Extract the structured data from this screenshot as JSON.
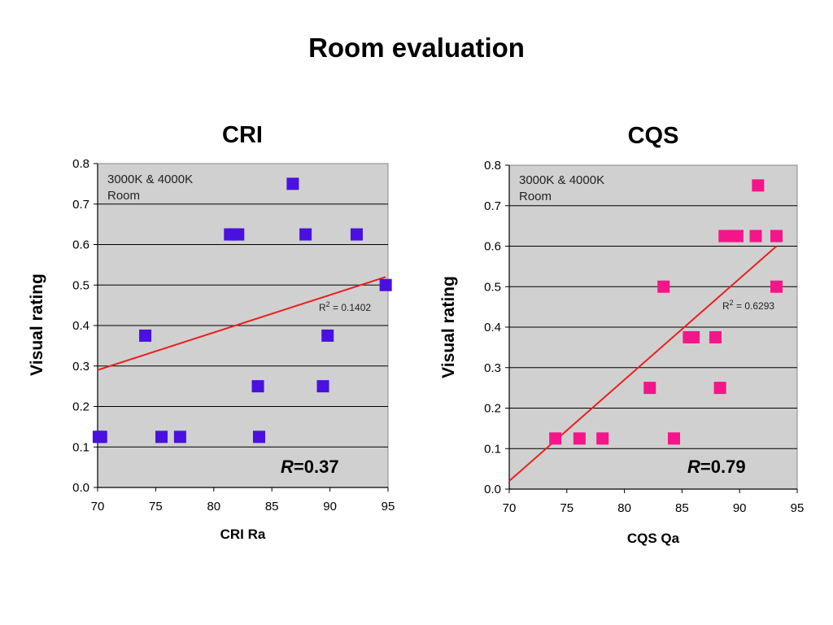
{
  "page": {
    "title": "Room evaluation"
  },
  "chart_data": [
    {
      "type": "scatter",
      "title": "CRI",
      "xlabel": "CRI Ra",
      "ylabel": "Visual rating",
      "xlim": [
        70,
        95
      ],
      "ylim": [
        0,
        0.8
      ],
      "xticks": [
        70,
        75,
        80,
        85,
        90,
        95
      ],
      "xtick_labels": [
        "70",
        "75",
        "80",
        "85",
        "90",
        "95"
      ],
      "yticks": [
        0,
        0.1,
        0.2,
        0.3,
        0.4,
        0.5,
        0.6,
        0.7,
        0.8
      ],
      "ytick_labels": [
        "0.0",
        "0.1",
        "0.2",
        "0.3",
        "0.4",
        "0.5",
        "0.6",
        "0.7",
        "0.8"
      ],
      "grid": true,
      "legend_text": [
        "3000K & 4000K",
        "Room"
      ],
      "legend_position": "top-left",
      "marker_color": "#4A10E0",
      "trendline_color": "#E8201E",
      "background_color": "#D0D0D0",
      "points": [
        {
          "x": 70.1,
          "y": 0.125
        },
        {
          "x": 70.3,
          "y": 0.125
        },
        {
          "x": 74.1,
          "y": 0.375
        },
        {
          "x": 75.5,
          "y": 0.125
        },
        {
          "x": 77.1,
          "y": 0.125
        },
        {
          "x": 81.4,
          "y": 0.625
        },
        {
          "x": 81.8,
          "y": 0.625
        },
        {
          "x": 82.1,
          "y": 0.625
        },
        {
          "x": 83.8,
          "y": 0.25
        },
        {
          "x": 83.9,
          "y": 0.125
        },
        {
          "x": 86.8,
          "y": 0.75
        },
        {
          "x": 87.9,
          "y": 0.625
        },
        {
          "x": 89.4,
          "y": 0.25
        },
        {
          "x": 89.8,
          "y": 0.375
        },
        {
          "x": 92.3,
          "y": 0.625
        },
        {
          "x": 94.8,
          "y": 0.5
        }
      ],
      "trendline": {
        "x": [
          70,
          94.8
        ],
        "y": [
          0.29,
          0.52
        ]
      },
      "r2_prefix": "R",
      "r2_sup": "2",
      "r2_value": " = 0.1402",
      "r_italic": "R",
      "r_value": "=0.37"
    },
    {
      "type": "scatter",
      "title": "CQS",
      "xlabel": "CQS Qa",
      "ylabel": "Visual rating",
      "xlim": [
        70,
        95
      ],
      "ylim": [
        0,
        0.8
      ],
      "xticks": [
        70,
        75,
        80,
        85,
        90,
        95
      ],
      "xtick_labels": [
        "70",
        "75",
        "80",
        "85",
        "90",
        "95"
      ],
      "yticks": [
        0,
        0.1,
        0.2,
        0.3,
        0.4,
        0.5,
        0.6,
        0.7,
        0.8
      ],
      "ytick_labels": [
        "0.0",
        "0.1",
        "0.2",
        "0.3",
        "0.4",
        "0.5",
        "0.6",
        "0.7",
        "0.8"
      ],
      "grid": true,
      "legend_text": [
        "3000K & 4000K",
        "Room"
      ],
      "legend_position": "top-left",
      "marker_color": "#F5158A",
      "trendline_color": "#E8201E",
      "background_color": "#D0D0D0",
      "points": [
        {
          "x": 74.0,
          "y": 0.125
        },
        {
          "x": 76.1,
          "y": 0.125
        },
        {
          "x": 78.1,
          "y": 0.125
        },
        {
          "x": 82.2,
          "y": 0.25
        },
        {
          "x": 83.4,
          "y": 0.5
        },
        {
          "x": 84.3,
          "y": 0.125
        },
        {
          "x": 85.6,
          "y": 0.375
        },
        {
          "x": 86.0,
          "y": 0.375
        },
        {
          "x": 87.9,
          "y": 0.375
        },
        {
          "x": 88.3,
          "y": 0.25
        },
        {
          "x": 88.7,
          "y": 0.625
        },
        {
          "x": 89.3,
          "y": 0.625
        },
        {
          "x": 89.8,
          "y": 0.625
        },
        {
          "x": 91.4,
          "y": 0.625
        },
        {
          "x": 91.6,
          "y": 0.75
        },
        {
          "x": 93.2,
          "y": 0.625
        },
        {
          "x": 93.2,
          "y": 0.5
        }
      ],
      "trendline": {
        "x": [
          70,
          93.2
        ],
        "y": [
          0.02,
          0.6
        ]
      },
      "r2_prefix": "R",
      "r2_sup": "2",
      "r2_value": " = 0.6293",
      "r_italic": "R",
      "r_value": "=0.79"
    }
  ]
}
